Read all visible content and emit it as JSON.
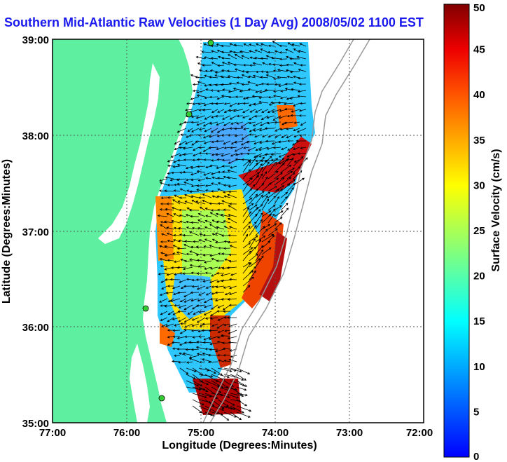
{
  "title": "Southern Mid-Atlantic Raw Velocities (1 Day Avg) 2008/05/02 1100 EST",
  "x_axis": {
    "label": "Longitude (Degrees:Minutes)",
    "ticks": [
      "77:00",
      "76:00",
      "75:00",
      "74:00",
      "73:00",
      "72:00"
    ]
  },
  "y_axis": {
    "label": "Latitude (Degrees:Minutes)",
    "ticks": [
      "39:00",
      "38:00",
      "37:00",
      "36:00",
      "35:00"
    ]
  },
  "colorbar": {
    "label": "Surface Velocity (cm/s)",
    "ticks": [
      "0",
      "5",
      "10",
      "15",
      "20",
      "25",
      "30",
      "35",
      "40",
      "45",
      "50"
    ],
    "range": [
      0,
      50
    ],
    "colormap": "jet"
  },
  "colors": {
    "land": "#5ef0a0",
    "title": "#1a1aee",
    "station": "#33cc33"
  },
  "stations": [
    {
      "name": "station-1"
    },
    {
      "name": "station-2"
    },
    {
      "name": "station-3"
    },
    {
      "name": "station-4"
    }
  ]
}
